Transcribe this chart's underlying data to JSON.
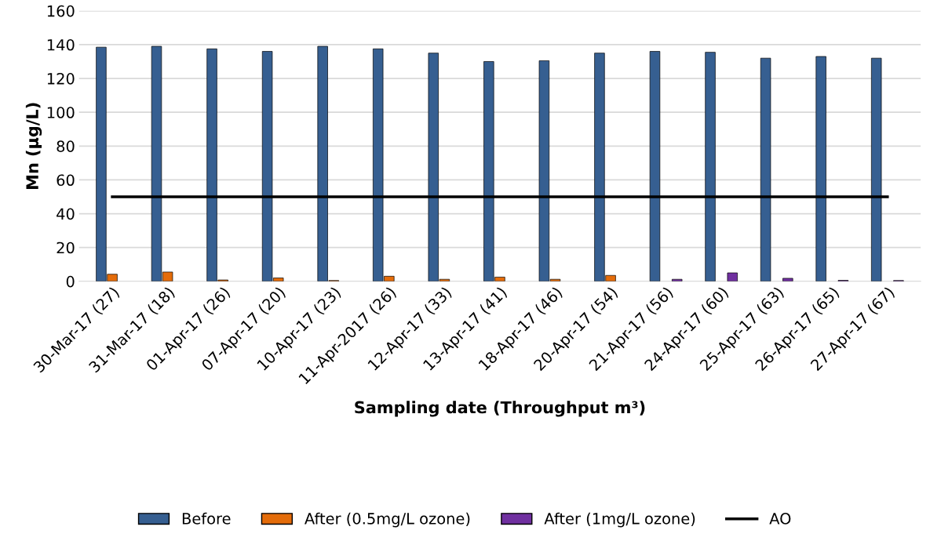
{
  "chart_data": {
    "type": "bar",
    "xlabel": "Sampling date (Throughput m³)",
    "ylabel": "Mn (µg/L)",
    "categories": [
      "30-Mar-17 (27)",
      "31-Mar-17 (18)",
      "01-Apr-17 (26)",
      "07-Apr-17 (20)",
      "10-Apr-17 (23)",
      "11-Apr-2017 (26)",
      "12-Apr-17 (33)",
      "13-Apr-17 (41)",
      "18-Apr-17 (46)",
      "20-Apr-17 (54)",
      "21-Apr-17 (56)",
      "24-Apr-17 (60)",
      "25-Apr-17 (63)",
      "26-Apr-17 (65)",
      "27-Apr-17 (67)"
    ],
    "series": [
      {
        "name": "Before",
        "color": "#365f91",
        "values": [
          138.5,
          139,
          137.5,
          136,
          139,
          137.5,
          135,
          130,
          130.5,
          135,
          136,
          135.5,
          132,
          133,
          132
        ]
      },
      {
        "name": "After (0.5mg/L ozone)",
        "color": "#e46c0a",
        "values": [
          4.2,
          5.5,
          0.8,
          2,
          0.5,
          3,
          1.2,
          2.5,
          1.2,
          3.5,
          null,
          null,
          null,
          null,
          null
        ]
      },
      {
        "name": "After (1mg/L ozone)",
        "color": "#7030a0",
        "values": [
          null,
          null,
          null,
          null,
          null,
          null,
          null,
          null,
          null,
          null,
          1.2,
          5,
          1.8,
          0.6,
          0.5
        ]
      },
      {
        "name": "AO",
        "type": "line",
        "color": "#000000",
        "values": [
          50,
          50,
          50,
          50,
          50,
          50,
          50,
          50,
          50,
          50,
          50,
          50,
          50,
          50,
          50
        ]
      }
    ],
    "ylim": [
      0,
      160
    ],
    "yticks": [
      0,
      20,
      40,
      60,
      80,
      100,
      120,
      140,
      160
    ],
    "grid": "y",
    "legend": "bottom",
    "marker": "none",
    "line_style": "solid"
  }
}
